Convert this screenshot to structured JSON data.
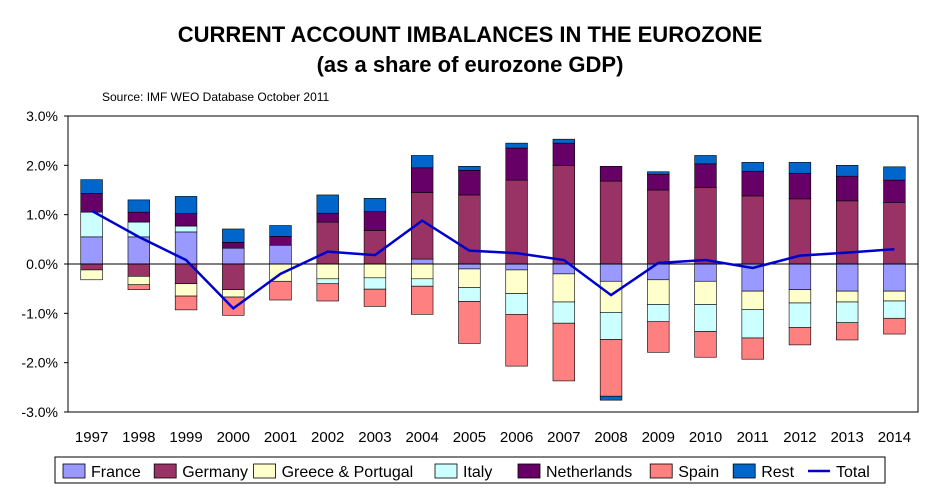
{
  "chart_data": {
    "type": "bar",
    "title": "CURRENT ACCOUNT IMBALANCES IN THE EUROZONE",
    "subtitle": "(as a share of eurozone GDP)",
    "source": "Source: IMF WEO Database October 2011",
    "xlabel": "",
    "ylabel": "",
    "ylim": [
      -3.0,
      3.0
    ],
    "yticks": [
      -3.0,
      -2.0,
      -1.0,
      0.0,
      1.0,
      2.0,
      3.0
    ],
    "ytick_labels": [
      "-3.0%",
      "-2.0%",
      "-1.0%",
      "0.0%",
      "1.0%",
      "2.0%",
      "3.0%"
    ],
    "grid": false,
    "legend_position": "bottom",
    "categories": [
      "1997",
      "1998",
      "1999",
      "2000",
      "2001",
      "2002",
      "2003",
      "2004",
      "2005",
      "2006",
      "2007",
      "2008",
      "2009",
      "2010",
      "2011",
      "2012",
      "2013",
      "2014"
    ],
    "series": [
      {
        "name": "France",
        "color": "#9999ff",
        "values": [
          0.55,
          0.55,
          0.65,
          0.32,
          0.38,
          0.0,
          0.0,
          0.1,
          -0.1,
          -0.12,
          -0.2,
          -0.35,
          -0.32,
          -0.35,
          -0.55,
          -0.52,
          -0.55,
          -0.55
        ]
      },
      {
        "name": "Germany",
        "color": "#993366",
        "values": [
          -0.12,
          -0.25,
          -0.4,
          -0.52,
          0.0,
          0.85,
          0.68,
          1.35,
          1.4,
          1.7,
          2.0,
          1.68,
          1.5,
          1.55,
          1.38,
          1.32,
          1.28,
          1.25
        ]
      },
      {
        "name": "Greece & Portugal",
        "color": "#ffffcc",
        "values": [
          -0.2,
          -0.17,
          -0.25,
          -0.15,
          -0.35,
          -0.3,
          -0.28,
          -0.3,
          -0.38,
          -0.48,
          -0.57,
          -0.63,
          -0.5,
          -0.47,
          -0.37,
          -0.27,
          -0.22,
          -0.2
        ]
      },
      {
        "name": "Italy",
        "color": "#ccffff",
        "values": [
          0.5,
          0.3,
          0.12,
          0.0,
          0.0,
          -0.1,
          -0.23,
          -0.15,
          -0.28,
          -0.42,
          -0.43,
          -0.55,
          -0.35,
          -0.55,
          -0.58,
          -0.5,
          -0.42,
          -0.35
        ]
      },
      {
        "name": "Netherlands",
        "color": "#660066",
        "values": [
          0.38,
          0.2,
          0.25,
          0.12,
          0.18,
          0.18,
          0.38,
          0.5,
          0.5,
          0.65,
          0.45,
          0.3,
          0.32,
          0.48,
          0.5,
          0.52,
          0.5,
          0.45
        ]
      },
      {
        "name": "Spain",
        "color": "#ff8080",
        "values": [
          0.0,
          -0.1,
          -0.28,
          -0.37,
          -0.38,
          -0.35,
          -0.35,
          -0.57,
          -0.85,
          -1.05,
          -1.17,
          -1.15,
          -0.62,
          -0.52,
          -0.43,
          -0.35,
          -0.35,
          -0.32
        ]
      },
      {
        "name": "Rest",
        "color": "#0066cc",
        "values": [
          0.28,
          0.25,
          0.35,
          0.27,
          0.22,
          0.37,
          0.27,
          0.25,
          0.08,
          0.1,
          0.08,
          -0.08,
          0.05,
          0.17,
          0.18,
          0.22,
          0.22,
          0.27
        ]
      }
    ],
    "total": {
      "name": "Total",
      "color": "#0000cc",
      "values": [
        1.08,
        0.55,
        0.08,
        -0.9,
        -0.2,
        0.25,
        0.18,
        0.88,
        0.27,
        0.22,
        0.08,
        -0.63,
        0.02,
        0.08,
        -0.08,
        0.17,
        0.23,
        0.3
      ]
    }
  }
}
